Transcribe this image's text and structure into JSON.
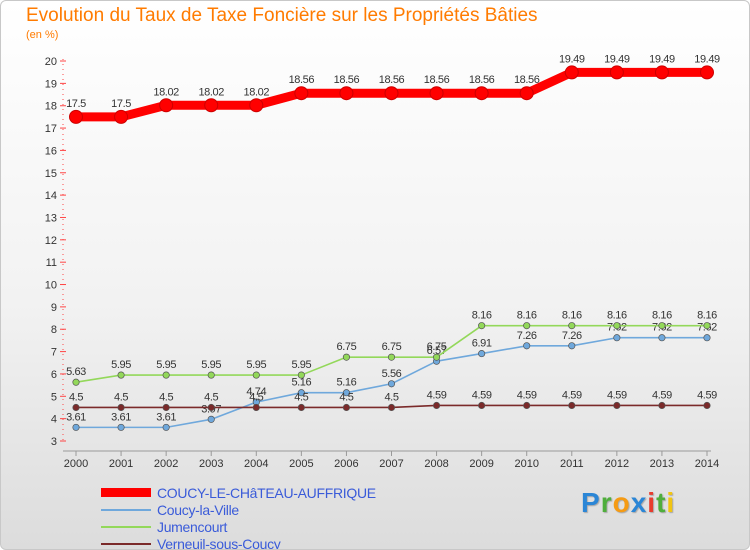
{
  "header": {
    "title": "Evolution du Taux de Taxe Foncière sur les Propriétés Bâties",
    "subtitle": "(en %)"
  },
  "brand": {
    "letters": [
      "P",
      "r",
      "o",
      "x",
      "i",
      "t",
      "i"
    ],
    "colors": [
      "#2b86d6",
      "#4fae3c",
      "#f59b14",
      "#2b86d6",
      "#e73c2e",
      "#4fae3c",
      "#f2c511"
    ]
  },
  "chart_data": {
    "type": "line",
    "title": "Evolution du Taux de Taxe Foncière sur les Propriétés Bâties",
    "ylabel": "(en %)",
    "xlabel": "",
    "ylim": [
      3,
      20
    ],
    "yticks": [
      "3",
      "4",
      "5",
      "6",
      "7",
      "8",
      "9",
      "10",
      "11",
      "12",
      "13",
      "14",
      "15",
      "16",
      "17",
      "18",
      "19",
      "20"
    ],
    "categories": [
      "2000",
      "2001",
      "2002",
      "2003",
      "2004",
      "2005",
      "2006",
      "2007",
      "2008",
      "2009",
      "2010",
      "2011",
      "2012",
      "2013",
      "2014"
    ],
    "grid": false,
    "legend_position": "bottom-left",
    "series": [
      {
        "name": "COUCY-LE-CHâTEAU-AUFFRIQUE",
        "color": "#ff0000",
        "values": [
          17.5,
          17.5,
          18.02,
          18.02,
          18.02,
          18.56,
          18.56,
          18.56,
          18.56,
          18.56,
          18.56,
          19.49,
          19.49,
          19.49,
          19.49
        ],
        "labels": [
          "17.5",
          "17.5",
          "18.02",
          "18.02",
          "18.02",
          "18.56",
          "18.56",
          "18.56",
          "18.56",
          "18.56",
          "18.56",
          "19.49",
          "19.49",
          "19.49",
          "19.49"
        ]
      },
      {
        "name": "Coucy-la-Ville",
        "color": "#6fa8dc",
        "values": [
          3.61,
          3.61,
          3.61,
          3.97,
          4.74,
          5.16,
          5.16,
          5.56,
          6.57,
          6.91,
          7.26,
          7.26,
          7.62,
          7.62,
          7.62
        ],
        "labels": [
          "3.61",
          "3.61",
          "3.61",
          "3.97",
          "4.74",
          "5.16",
          "5.16",
          "5.56",
          "6.57",
          "6.91",
          "7.26",
          "7.26",
          "7.62",
          "7.62",
          "7.62"
        ]
      },
      {
        "name": "Jumencourt",
        "color": "#93d85a",
        "values": [
          5.63,
          5.95,
          5.95,
          5.95,
          5.95,
          5.95,
          6.75,
          6.75,
          6.75,
          8.16,
          8.16,
          8.16,
          8.16,
          8.16,
          8.16
        ],
        "labels": [
          "5.63",
          "5.95",
          "5.95",
          "5.95",
          "5.95",
          "5.95",
          "6.75",
          "6.75",
          "6.75",
          "8.16",
          "8.16",
          "8.16",
          "8.16",
          "8.16",
          "8.16"
        ]
      },
      {
        "name": "Verneuil-sous-Coucy",
        "color": "#7b2a2a",
        "values": [
          4.5,
          4.5,
          4.5,
          4.5,
          4.5,
          4.5,
          4.5,
          4.5,
          4.59,
          4.59,
          4.59,
          4.59,
          4.59,
          4.59,
          4.59
        ],
        "labels": [
          "4.5",
          "4.5",
          "4.5",
          "4.5",
          "4.5",
          "4.5",
          "4.5",
          "4.5",
          "4.59",
          "4.59",
          "4.59",
          "4.59",
          "4.59",
          "4.59",
          "4.59"
        ]
      }
    ]
  }
}
